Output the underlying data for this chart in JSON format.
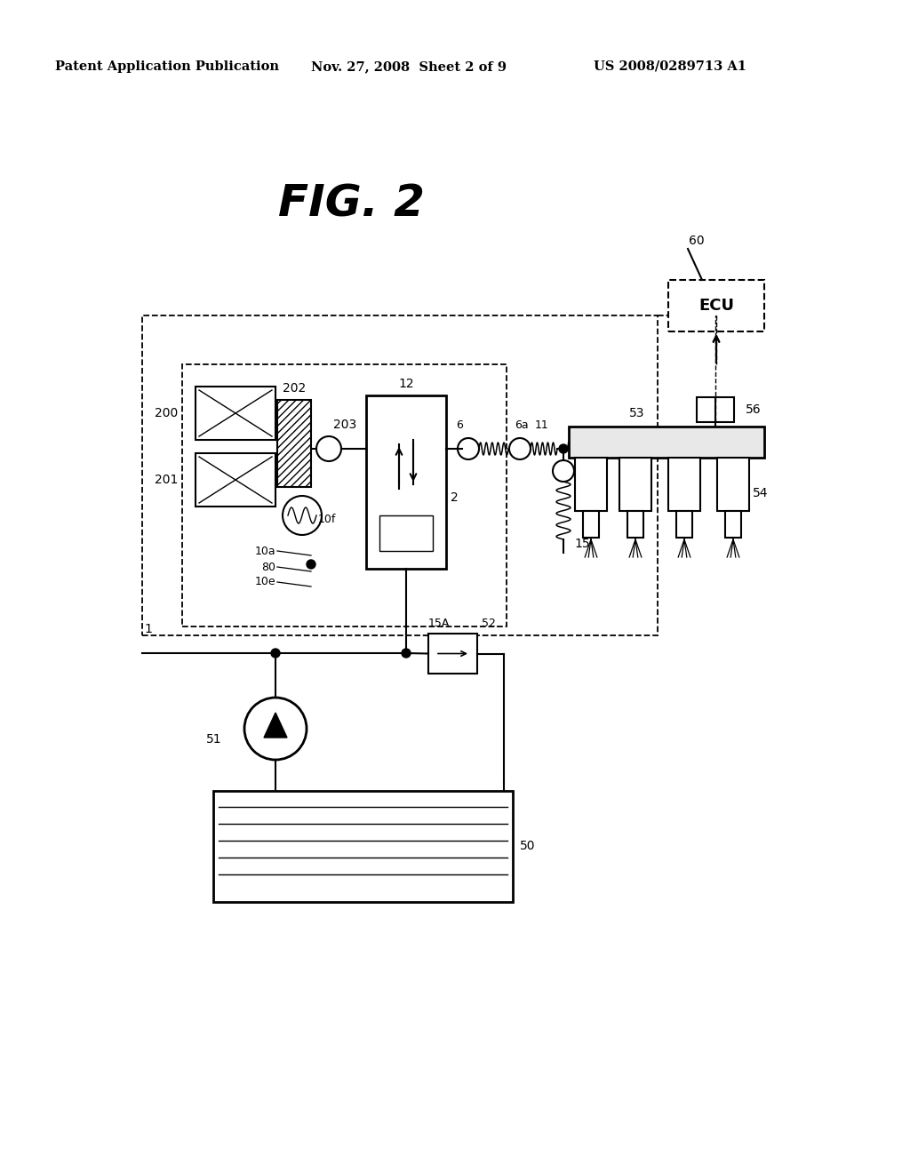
{
  "background_color": "#ffffff",
  "header_left": "Patent Application Publication",
  "header_center": "Nov. 27, 2008  Sheet 2 of 9",
  "header_right": "US 2008/0289713 A1",
  "fig_title": "FIG. 2",
  "lw_thin": 1.0,
  "lw_std": 1.5,
  "lw_thick": 2.0
}
